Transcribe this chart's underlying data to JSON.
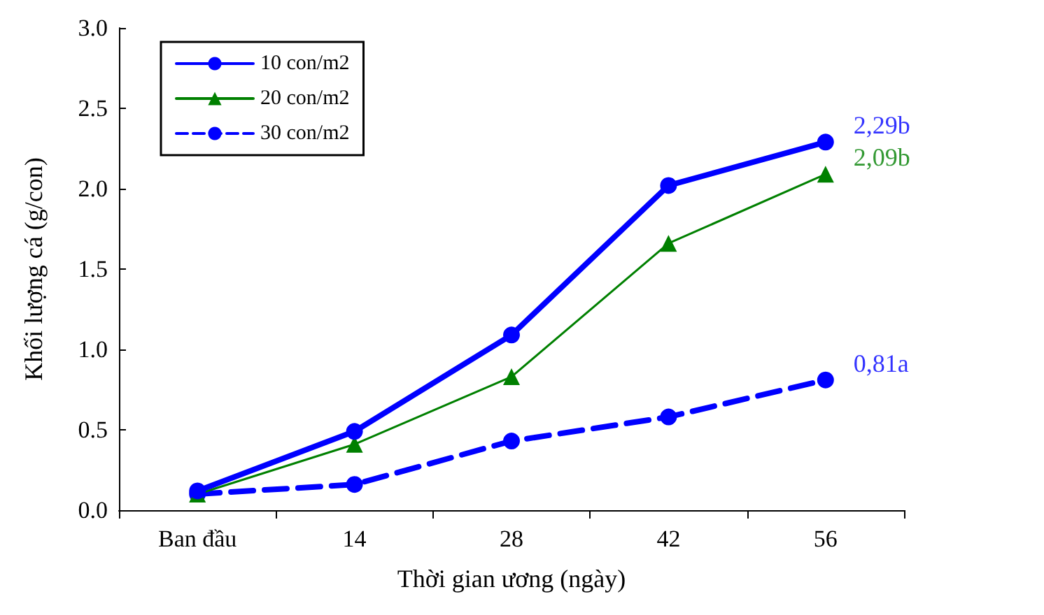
{
  "chart_data": {
    "type": "line",
    "xlabel": "Thời gian ương (ngày)",
    "ylabel": "Khối lượng cá (g/con)",
    "categories": [
      "Ban đầu",
      "14",
      "28",
      "42",
      "56"
    ],
    "series": [
      {
        "name": "10 con/m2",
        "color": "#0000ff",
        "values": [
          0.12,
          0.49,
          1.09,
          2.02,
          2.29
        ],
        "marker": "circle",
        "line_style": "solid"
      },
      {
        "name": "20 con/m2",
        "color": "#008000",
        "values": [
          0.1,
          0.41,
          0.83,
          1.66,
          2.09
        ],
        "marker": "triangle",
        "line_style": "solid"
      },
      {
        "name": "30 con/m2",
        "color": "#0000ff",
        "values": [
          0.1,
          0.16,
          0.43,
          0.58,
          0.81
        ],
        "marker": "circle",
        "line_style": "dashed"
      }
    ],
    "ylim": [
      0,
      3
    ],
    "yticks": [
      {
        "value": 0,
        "label": "0.0"
      },
      {
        "value": 0.5,
        "label": "0.5"
      },
      {
        "value": 1,
        "label": "1.0"
      },
      {
        "value": 1.5,
        "label": "1.5"
      },
      {
        "value": 2,
        "label": "2.0"
      },
      {
        "value": 2.5,
        "label": "2.5"
      },
      {
        "value": 3,
        "label": "3.0"
      }
    ],
    "annotations": [
      {
        "text": "2,29b",
        "x": "56",
        "y": 2.29
      },
      {
        "text": "2,09b",
        "x": "56",
        "y": 2.09
      },
      {
        "text": "0,81a",
        "x": "56",
        "y": 0.81
      }
    ],
    "grid": false,
    "legend": "top left"
  }
}
